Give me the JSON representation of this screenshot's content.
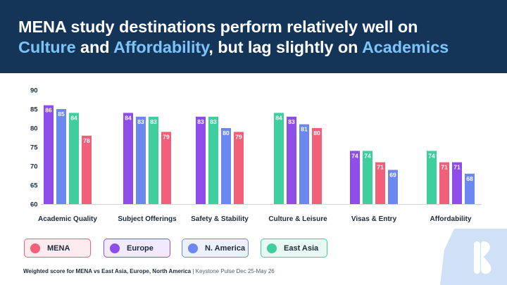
{
  "title": {
    "line1": "MENA study destinations perform relatively well on",
    "part_culture": "Culture",
    "part_and": " and ",
    "part_affordability": "Affordability",
    "part_lag": ", but lag slightly on ",
    "part_academics": "Academics"
  },
  "footnote": {
    "main": "Weighted score for MENA vs East Asia, Europe, North America",
    "separator": " | ",
    "source": "Keystone Pulse Dec 25-May 26"
  },
  "colors": {
    "header_bg": "#143557",
    "title_highlight": "#7cc4f8",
    "MENA": "#f25f78",
    "Europe": "#8e4de8",
    "N. America": "#6b87f0",
    "East Asia": "#3fcf9f",
    "logo": "#cfe0f7"
  },
  "icons": {
    "logo": "keystone-logo-icon"
  },
  "chart_data": {
    "type": "bar",
    "ylim": [
      60,
      90
    ],
    "yticks": [
      60,
      65,
      70,
      75,
      80,
      85,
      90
    ],
    "xlabel": "",
    "ylabel": "",
    "legend_position": "bottom",
    "categories": [
      "Academic Quality",
      "Subject Offerings",
      "Safety & Stability",
      "Culture & Leisure",
      "Visas & Entry",
      "Affordability"
    ],
    "groups": [
      {
        "category": "Academic Quality",
        "bars": [
          {
            "series": "Europe",
            "value": 86
          },
          {
            "series": "N. America",
            "value": 85
          },
          {
            "series": "East Asia",
            "value": 84
          },
          {
            "series": "MENA",
            "value": 78
          }
        ]
      },
      {
        "category": "Subject Offerings",
        "bars": [
          {
            "series": "Europe",
            "value": 84
          },
          {
            "series": "N. America",
            "value": 83
          },
          {
            "series": "East Asia",
            "value": 83
          },
          {
            "series": "MENA",
            "value": 79
          }
        ]
      },
      {
        "category": "Safety & Stability",
        "bars": [
          {
            "series": "Europe",
            "value": 83
          },
          {
            "series": "East Asia",
            "value": 83
          },
          {
            "series": "N. America",
            "value": 80
          },
          {
            "series": "MENA",
            "value": 79
          }
        ]
      },
      {
        "category": "Culture & Leisure",
        "bars": [
          {
            "series": "East Asia",
            "value": 84
          },
          {
            "series": "Europe",
            "value": 83
          },
          {
            "series": "N. America",
            "value": 81
          },
          {
            "series": "MENA",
            "value": 80
          }
        ]
      },
      {
        "category": "Visas & Entry",
        "bars": [
          {
            "series": "Europe",
            "value": 74
          },
          {
            "series": "East Asia",
            "value": 74
          },
          {
            "series": "MENA",
            "value": 71
          },
          {
            "series": "N. America",
            "value": 69
          }
        ]
      },
      {
        "category": "Affordability",
        "bars": [
          {
            "series": "East Asia",
            "value": 74
          },
          {
            "series": "MENA",
            "value": 71
          },
          {
            "series": "Europe",
            "value": 71
          },
          {
            "series": "N. America",
            "value": 68
          }
        ]
      }
    ],
    "series": [
      {
        "name": "MENA",
        "values": [
          78,
          79,
          79,
          80,
          71,
          71
        ]
      },
      {
        "name": "Europe",
        "values": [
          86,
          84,
          83,
          83,
          74,
          71
        ]
      },
      {
        "name": "N. America",
        "values": [
          85,
          83,
          80,
          81,
          69,
          68
        ]
      },
      {
        "name": "East Asia",
        "values": [
          84,
          83,
          83,
          84,
          74,
          74
        ]
      }
    ],
    "legend": [
      "MENA",
      "Europe",
      "N. America",
      "East Asia"
    ]
  }
}
